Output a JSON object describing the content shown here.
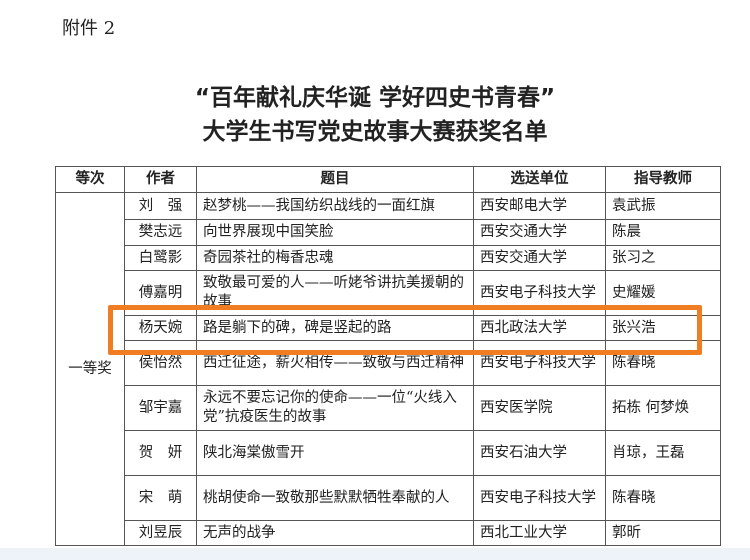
{
  "attachment": "附件 2",
  "title_line1": "“百年献礼庆华诞 学好四史书青春”",
  "title_line2": "大学生书写党史故事大赛获奖名单",
  "headers": [
    "等次",
    "作者",
    "题目",
    "选送单位",
    "指导教师"
  ],
  "rank": "一等奖",
  "rows": [
    {
      "author": "刘　强",
      "title": "赵梦桃——我国纺织战线的一面红旗",
      "unit": "西安邮电大学",
      "teacher": "袁武振"
    },
    {
      "author": "樊志远",
      "title": "向世界展现中国笑脸",
      "unit": "西安交通大学",
      "teacher": "陈晨"
    },
    {
      "author": "白鹭影",
      "title": "奇园茶社的梅香忠魂",
      "unit": "西安交通大学",
      "teacher": "张习之"
    },
    {
      "author": "傅嘉明",
      "title": "致敬最可爱的人——听姥爷讲抗美援朝的故事",
      "unit": "西安电子科技大学",
      "teacher": "史耀媛"
    },
    {
      "author": "杨天婉",
      "title": "路是躺下的碑，碑是竖起的路",
      "unit": "西北政法大学",
      "teacher": "张兴浩"
    },
    {
      "author": "侯怡然",
      "title": "西迁征途，薪火相传——致敬与西迁精神",
      "unit": "西安电子科技大学",
      "teacher": "陈春晓"
    },
    {
      "author": "邹宇嘉",
      "title": "永远不要忘记你的使命——一位“火线入党”抗疫医生的故事",
      "unit": "西安医学院",
      "teacher": "拓栋 何梦焕"
    },
    {
      "author": "贺　妍",
      "title": "陕北海棠傲雪开",
      "unit": "西安石油大学",
      "teacher": "肖琼，王磊"
    },
    {
      "author": "宋　萌",
      "title": "桃胡使命一致敬那些默默牺牲奉献的人",
      "unit": "西安电子科技大学",
      "teacher": "陈春晓"
    },
    {
      "author": "刘昱辰",
      "title": "无声的战争",
      "unit": "西北工业大学",
      "teacher": "郭昕"
    }
  ],
  "highlight_color": "#f07d22"
}
